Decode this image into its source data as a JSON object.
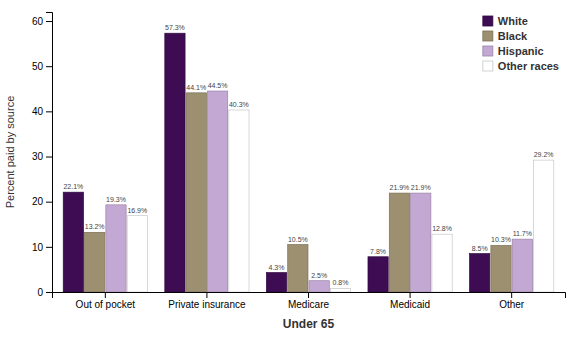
{
  "chart_data": {
    "type": "bar",
    "categories": [
      "Out of pocket",
      "Private insurance",
      "Medicare",
      "Medicaid",
      "Other"
    ],
    "series": [
      {
        "name": "White",
        "color": "#3d0c52",
        "values": [
          22.1,
          57.3,
          4.3,
          7.8,
          8.5
        ],
        "value_labels": [
          "22.1%",
          "57.3%",
          "4.3%",
          "7.8%",
          "8.5%"
        ]
      },
      {
        "name": "Black",
        "color": "#9c9070",
        "values": [
          13.2,
          44.1,
          10.5,
          21.9,
          10.3
        ],
        "value_labels": [
          "13.2%",
          "44.1%",
          "10.5%",
          "21.9%",
          "10.3%"
        ]
      },
      {
        "name": "Hispanic",
        "color": "#c4a8d4",
        "values": [
          19.3,
          44.5,
          2.5,
          21.9,
          11.7
        ],
        "value_labels": [
          "19.3%",
          "44.5%",
          "2.5%",
          "21.9%",
          "11.7%"
        ]
      },
      {
        "name": "Other races",
        "color": "#ffffff",
        "values": [
          16.9,
          40.3,
          0.8,
          12.8,
          29.2
        ],
        "value_labels": [
          "16.9%",
          "40.3%",
          "0.8%",
          "12.8%",
          "29.2%"
        ]
      }
    ],
    "xlabel": "Under 65",
    "ylabel": "Percent paid by source",
    "ylim": [
      0,
      62
    ],
    "yticks": [
      0,
      10,
      20,
      30,
      40,
      50,
      60
    ],
    "grid": false,
    "legend": "upper right",
    "data_labels": true
  }
}
